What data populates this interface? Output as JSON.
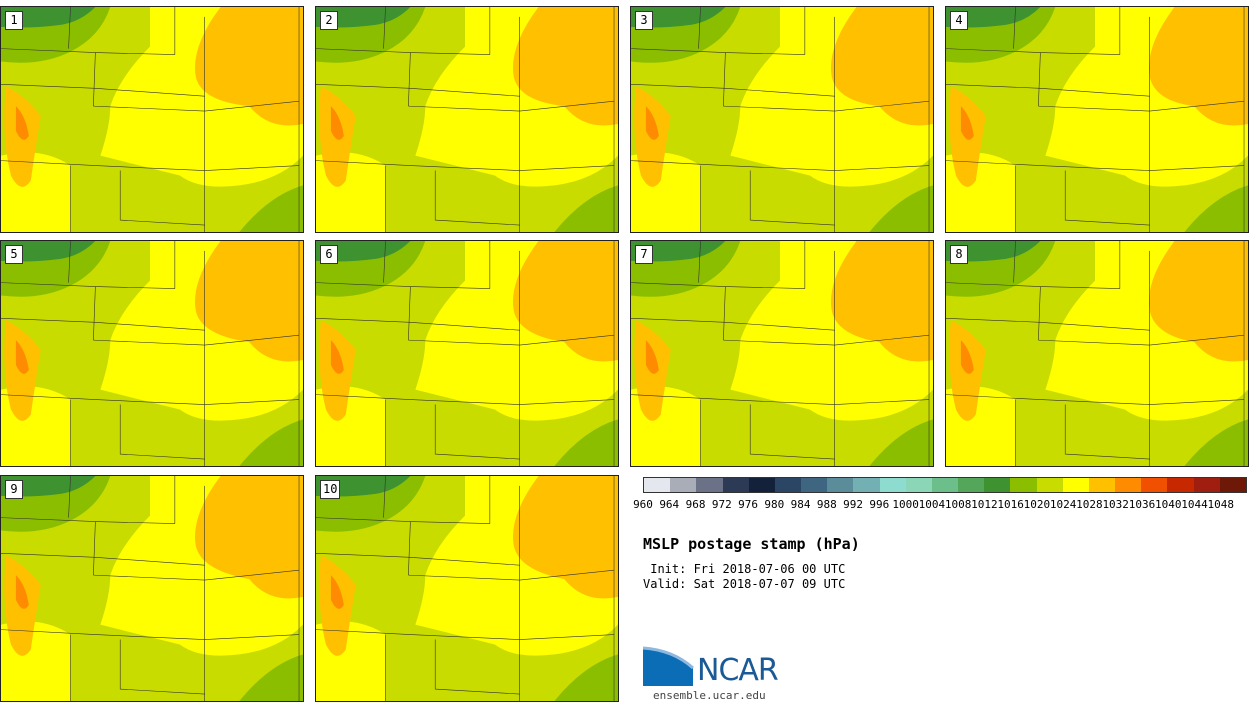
{
  "panels": [
    "1",
    "2",
    "3",
    "4",
    "5",
    "6",
    "7",
    "8",
    "9",
    "10"
  ],
  "colorbar": {
    "colors": [
      "#e4e8ee",
      "#a8adb8",
      "#6b7186",
      "#2d3a55",
      "#14213a",
      "#2a4664",
      "#3f6680",
      "#5a8c9a",
      "#73b0b3",
      "#8edcd0",
      "#8ad6b6",
      "#6cbe8a",
      "#54a75a",
      "#3e9330",
      "#8cbe00",
      "#c8dc00",
      "#ffff00",
      "#ffc000",
      "#ff8c00",
      "#f05000",
      "#c82800",
      "#a01e10",
      "#6e1808"
    ],
    "ticks": [
      "960",
      "964",
      "968",
      "972",
      "976",
      "980",
      "984",
      "988",
      "992",
      "996",
      "1000",
      "1004",
      "1008",
      "1012",
      "1016",
      "1020",
      "1024",
      "1028",
      "1032",
      "1036",
      "1040",
      "1044",
      "1048"
    ]
  },
  "title": "MSLP postage stamp (hPa)",
  "init": " Init: Fri 2018-07-06 00 UTC",
  "valid": "Valid: Sat 2018-07-07 09 UTC",
  "logo": {
    "text": "NCAR",
    "site": "ensemble.ucar.edu"
  }
}
